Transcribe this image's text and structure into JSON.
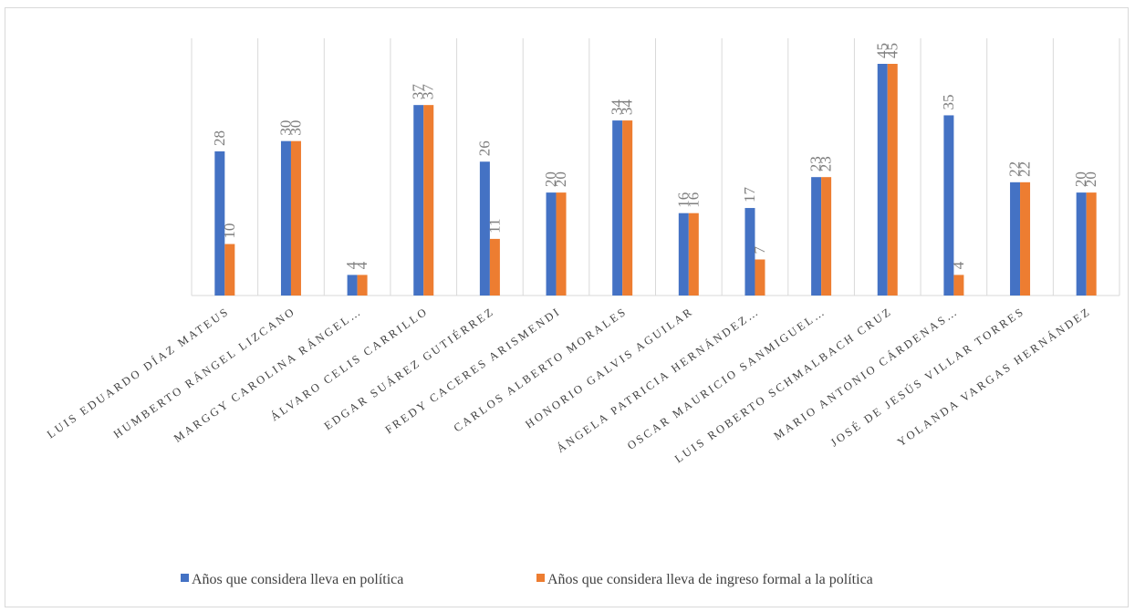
{
  "chart_data": {
    "type": "bar",
    "categories": [
      "LUIS EDUARDO DÍAZ MATEUS",
      "HUMBERTO RÁNGEL LIZCANO",
      "MARGGY CAROLINA RÁNGEL…",
      "ÁLVARO CELIS CARRILLO",
      "EDGAR SUÁREZ GUTIÉRREZ",
      "FREDY CACERES ARISMENDI",
      "CARLOS ALBERTO MORALES",
      "HONORIO GALVIS AGUILAR",
      "ÁNGELA PATRICIA HERNÁNDEZ…",
      "OSCAR MAURICIO SANMIGUEL…",
      "LUIS ROBERTO SCHMALBACH CRUZ",
      "MARIO ANTONIO CÁRDENAS…",
      "JOSÉ DE JESÚS VILLAR TORRES",
      "YOLANDA VARGAS HERNÁNDEZ"
    ],
    "series": [
      {
        "name": "Años que considera lleva en política",
        "color": "#4472c4",
        "values": [
          28,
          30,
          4,
          37,
          26,
          20,
          34,
          16,
          17,
          23,
          45,
          35,
          22,
          20
        ]
      },
      {
        "name": "Años que considera lleva de ingreso formal a la política",
        "color": "#ed7d31",
        "values": [
          10,
          30,
          4,
          37,
          11,
          20,
          34,
          16,
          7,
          23,
          45,
          4,
          22,
          20
        ]
      }
    ],
    "ylim": [
      0,
      45
    ],
    "grid": "vertical",
    "legend": "bottom"
  }
}
